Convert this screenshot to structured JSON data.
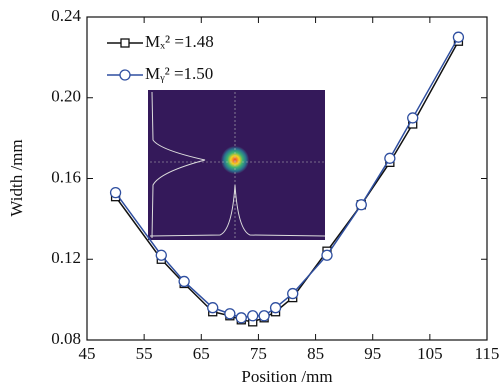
{
  "chart_data": {
    "type": "line",
    "x_label": "Position /mm",
    "y_label": "Width /mm",
    "xlim": [
      45,
      115
    ],
    "xticks": [
      45,
      55,
      65,
      75,
      85,
      95,
      105,
      115
    ],
    "ylim": [
      0.08,
      0.24
    ],
    "yticks": [
      0.08,
      0.12,
      0.16,
      {
        "value": 0.2,
        "label": "0.20"
      },
      0.24
    ],
    "legend": "upper left",
    "series": [
      {
        "name": "Mₓ² =1.48",
        "color": "#111111",
        "marker": "square",
        "x": [
          50,
          58,
          62,
          67,
          70,
          72,
          74,
          76,
          78,
          81,
          87,
          93,
          98,
          102,
          110
        ],
        "values": [
          0.151,
          0.12,
          0.108,
          0.094,
          0.092,
          0.09,
          0.089,
          0.091,
          0.094,
          0.101,
          0.124,
          0.147,
          0.168,
          0.187,
          0.228
        ]
      },
      {
        "name": "Mᵧ² =1.50",
        "color": "#2f4fa0",
        "marker": "circle",
        "x": [
          50,
          58,
          62,
          67,
          70,
          72,
          74,
          76,
          78,
          81,
          87,
          93,
          98,
          102,
          110
        ],
        "values": [
          0.153,
          0.122,
          0.109,
          0.096,
          0.093,
          0.091,
          0.092,
          0.092,
          0.096,
          0.103,
          0.122,
          0.147,
          0.17,
          0.19,
          0.23
        ]
      }
    ]
  }
}
